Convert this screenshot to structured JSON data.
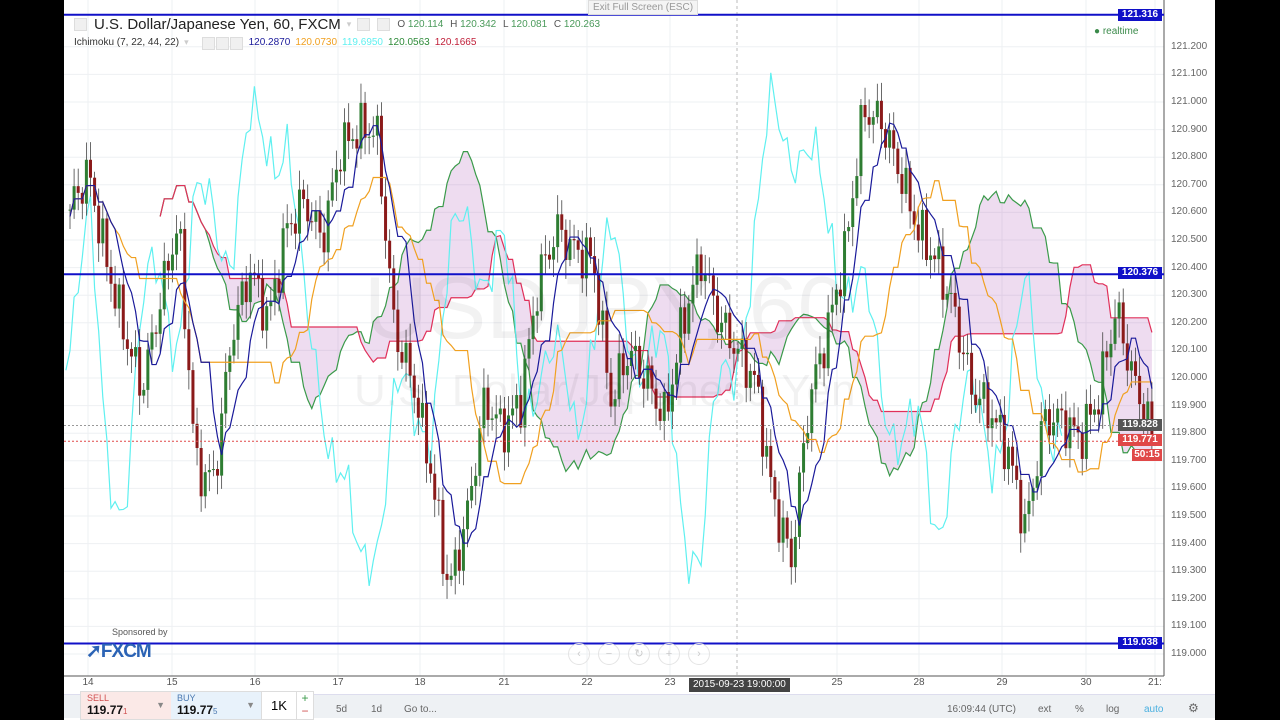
{
  "header": {
    "symbol_title": "U.S. Dollar/Japanese Yen, 60, FXCM",
    "ohlc": {
      "O": "120.114",
      "H": "120.342",
      "L": "120.081",
      "C": "120.263"
    },
    "exit_fullscreen": "Exit Full Screen (ESC)",
    "realtime_label": "realtime"
  },
  "indicator": {
    "name": "Ichimoku (7, 22, 44, 22)",
    "values": [
      {
        "value": "120.2870",
        "color": "#1a1a9a"
      },
      {
        "value": "120.0730",
        "color": "#f0a020"
      },
      {
        "value": "119.6950",
        "color": "#5ff0f0"
      },
      {
        "value": "120.0563",
        "color": "#2e8b3a"
      },
      {
        "value": "120.1665",
        "color": "#c0203a"
      }
    ]
  },
  "watermark": {
    "symbol": "USDJPY, 60",
    "description": "U.S. Dollar/Japanese Yen"
  },
  "price_labels": {
    "top_line": "121.316",
    "mid_line": "120.376",
    "bottom_line": "119.038",
    "prev_close": "119.828",
    "last_price": "119.771",
    "countdown": "50:15"
  },
  "colors": {
    "line_blue": "#1010c8",
    "up": "#2e7d32",
    "down": "#8b1a1a",
    "cloud": "rgba(160,60,170,0.18)",
    "last_price": "#e04848"
  },
  "chart_data": {
    "type": "candlestick",
    "title": "U.S. Dollar/Japanese Yen, 60, FXCM",
    "ylim": [
      118.96,
      121.34
    ],
    "y_ticks": [
      "121.200",
      "121.100",
      "121.000",
      "120.900",
      "120.800",
      "120.700",
      "120.600",
      "120.500",
      "120.400",
      "120.300",
      "120.200",
      "120.100",
      "120.000",
      "119.900",
      "119.800",
      "119.700",
      "119.600",
      "119.500",
      "119.400",
      "119.300",
      "119.200",
      "119.100",
      "119.000"
    ],
    "x_ticks": [
      "14",
      "15",
      "16",
      "17",
      "18",
      "21",
      "22",
      "23",
      "25",
      "28",
      "29",
      "30",
      "21:"
    ],
    "crosshair_date": "2015-09-23 19:00:00",
    "horizontal_lines": [
      121.316,
      120.376,
      119.038
    ],
    "close_path": [
      120.61,
      120.75,
      120.43,
      120.17,
      119.96,
      120.28,
      120.57,
      119.67,
      119.63,
      120.17,
      120.39,
      120.21,
      120.54,
      120.64,
      120.5,
      120.83,
      120.9,
      120.9,
      120.17,
      119.99,
      119.67,
      119.23,
      119.49,
      119.92,
      119.81,
      119.92,
      120.36,
      120.54,
      120.46,
      120.43,
      119.92,
      120.1,
      119.99,
      119.85,
      120.21,
      120.43,
      120.21,
      120.1,
      119.99,
      119.56,
      119.34,
      119.92,
      120.17,
      120.46,
      120.97,
      120.93,
      120.75,
      120.54,
      120.43,
      120.25,
      119.96,
      119.88,
      119.74,
      119.45,
      119.85,
      119.85,
      119.78,
      119.92,
      120.25,
      119.99,
      119.79
    ],
    "series": [
      {
        "name": "Ichimoku tenkan",
        "color": "#1a1a9a"
      },
      {
        "name": "Ichimoku kijun",
        "color": "#f0a020"
      },
      {
        "name": "Ichimoku chikou",
        "color": "#5ff0f0"
      },
      {
        "name": "Ichimoku span A",
        "color": "#3a9a4a"
      },
      {
        "name": "Ichimoku span B",
        "color": "#e0305a"
      }
    ]
  },
  "trade_panel": {
    "sell_label": "SELL",
    "sell_price": "119.77",
    "sell_pip": "1",
    "buy_label": "BUY",
    "buy_price": "119.77",
    "buy_pip": "5",
    "quantity": "1K",
    "plus": "+",
    "minus": "−"
  },
  "sponsor": {
    "text": "Sponsored by",
    "logo": "FXCM"
  },
  "toolbar": {
    "range_5d": "5d",
    "range_1d": "1d",
    "goto": "Go to...",
    "clock": "16:09:44 (UTC)",
    "ext": "ext",
    "percent": "%",
    "log": "log",
    "auto": "auto"
  },
  "nav": {
    "left": "‹",
    "zoom_out": "−",
    "reset": "↻",
    "zoom_in": "+",
    "right": "›"
  }
}
